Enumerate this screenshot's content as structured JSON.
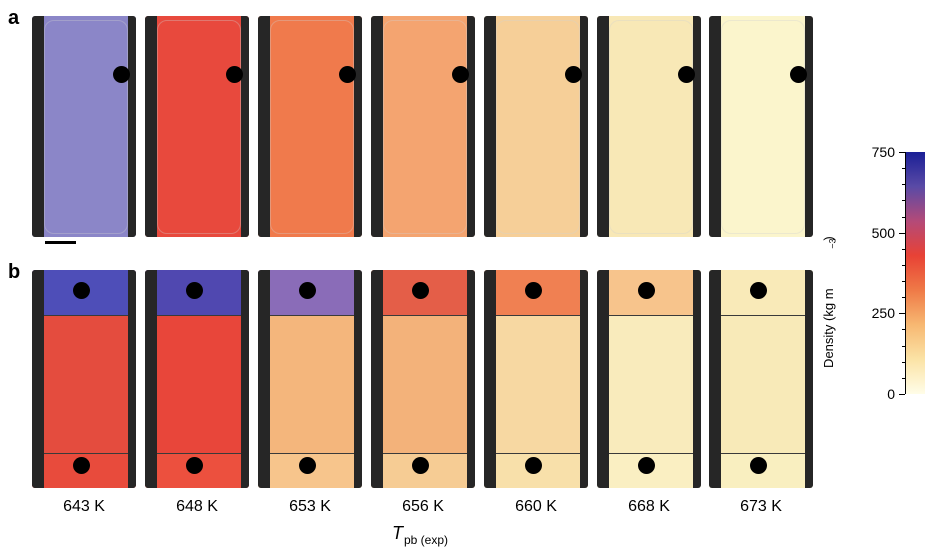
{
  "panels": [
    {
      "letter": "a"
    },
    {
      "letter": "b"
    }
  ],
  "temperatures": [
    "643 K",
    "648 K",
    "653 K",
    "656 K",
    "660 K",
    "668 K",
    "673 K"
  ],
  "x_axis_label": {
    "symbol": "T",
    "subscript": "pb (exp)"
  },
  "colorbar": {
    "title": "Density (kg m",
    "title_exp": "−3",
    "title_close": ")",
    "ticks": [
      "750",
      "500",
      "250",
      "0"
    ],
    "range": [
      0,
      750
    ],
    "colors": [
      "#fffde8",
      "#fbe3a6",
      "#f7b872",
      "#ef7a47",
      "#e84235",
      "#b44a78",
      "#5a4aa6",
      "#1a1f96"
    ]
  },
  "frame_colors": {
    "a": [
      "#8b86c8",
      "#e8493d",
      "#f07a4c",
      "#f4a470",
      "#f6cf98",
      "#f8e8b6",
      "#fbf5cc"
    ],
    "b_top": [
      "#4e4eb8",
      "#5048b0",
      "#8a6cb8",
      "#e45e48",
      "#f08052",
      "#f7c48c",
      "#f9eab8"
    ],
    "b_mid": [
      "#e44c3e",
      "#e8463a",
      "#f4b67c",
      "#f3b27a",
      "#f7d8a2",
      "#f9ebbc",
      "#f8eab8"
    ],
    "b_bottom": [
      "#e84b3c",
      "#ec503e",
      "#f7c58c",
      "#f6cc94",
      "#f8e0aa",
      "#faefc2",
      "#f9efc0"
    ]
  }
}
